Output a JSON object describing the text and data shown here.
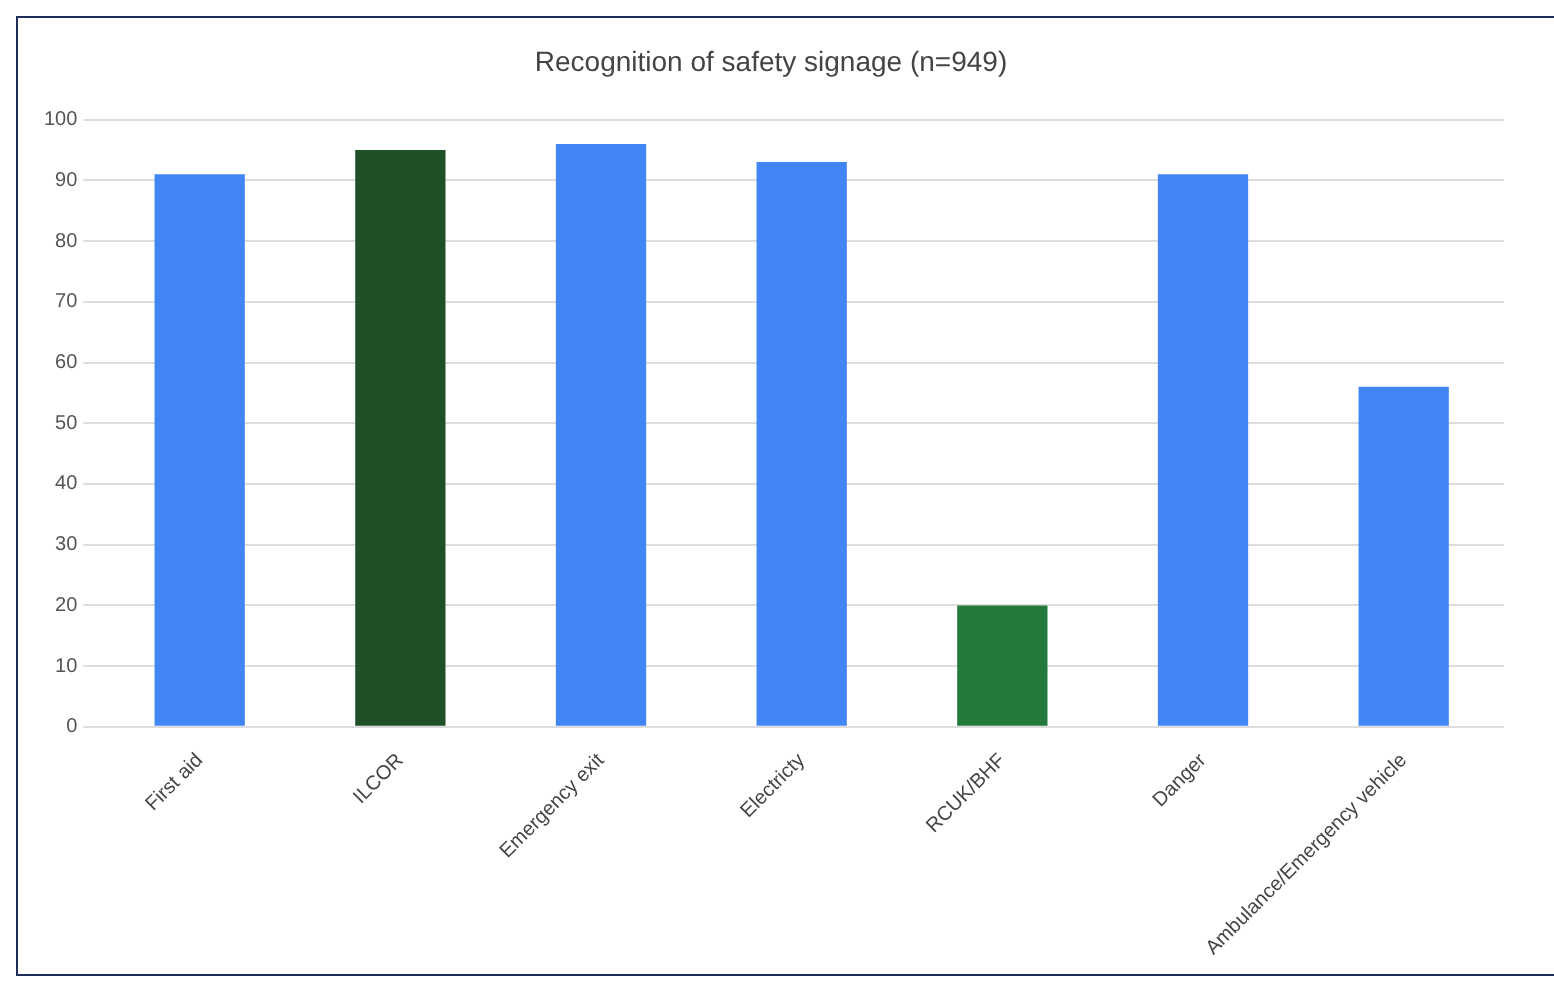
{
  "chart_data": {
    "type": "bar",
    "title": "Recognition of safety signage (n=949)",
    "categories": [
      "First aid",
      "ILCOR",
      "Emergency exit",
      "Electricty",
      "RCUK/BHF",
      "Danger",
      "Ambulance/Emergency vehicle"
    ],
    "values": [
      91,
      95,
      96,
      93,
      20,
      91,
      56
    ],
    "colors": [
      "#4285f4",
      "#1e5128",
      "#4285f4",
      "#4285f4",
      "#237a3b",
      "#4285f4",
      "#4285f4"
    ],
    "ylim": [
      0,
      100
    ],
    "yticks": [
      0,
      10,
      20,
      30,
      40,
      50,
      60,
      70,
      80,
      90,
      100
    ],
    "grid": "y",
    "legend": false
  }
}
